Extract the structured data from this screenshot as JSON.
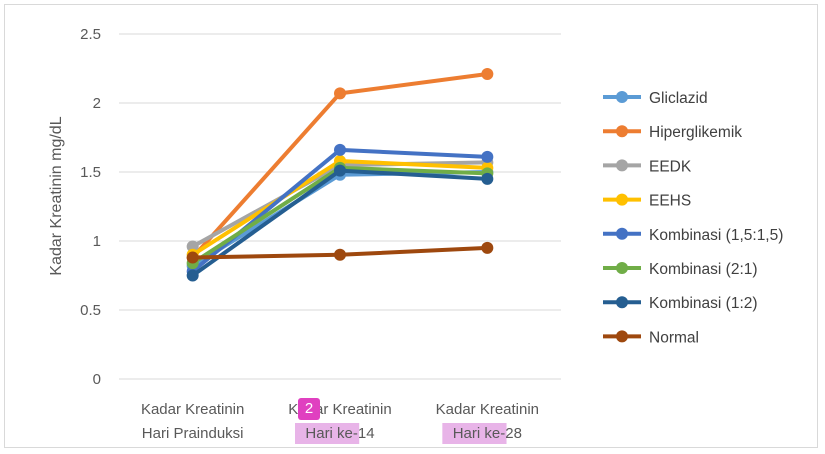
{
  "chart_data": {
    "type": "line",
    "title": "",
    "xlabel": "",
    "ylabel": "Kadar Kreatinin mg/dL",
    "ylim": [
      0,
      2.5
    ],
    "yticks": [
      "0",
      "0.5",
      "1",
      "1.5",
      "2",
      "2.5"
    ],
    "grid": true,
    "legend_position": "right",
    "categories": [
      [
        "Kadar Kreatinin",
        "Hari Prainduksi"
      ],
      [
        "Kadar Kreatinin",
        "Hari ke-14"
      ],
      [
        "Kadar Kreatinin",
        "Hari ke-28"
      ]
    ],
    "series": [
      {
        "name": "Gliclazid",
        "color": "#5b9bd5",
        "values": [
          0.82,
          1.48,
          1.5
        ]
      },
      {
        "name": "Hiperglikemik",
        "color": "#ed7d31",
        "values": [
          0.88,
          2.07,
          2.21
        ]
      },
      {
        "name": "EEDK",
        "color": "#a5a5a5",
        "values": [
          0.96,
          1.55,
          1.57
        ]
      },
      {
        "name": "EEHS",
        "color": "#ffc000",
        "values": [
          0.9,
          1.58,
          1.53
        ]
      },
      {
        "name": "Kombinasi (1,5:1,5)",
        "color": "#4472c4",
        "values": [
          0.78,
          1.66,
          1.61
        ]
      },
      {
        "name": "Kombinasi (2:1)",
        "color": "#70ad47",
        "values": [
          0.84,
          1.53,
          1.49
        ]
      },
      {
        "name": "Kombinasi (1:2)",
        "color": "#255e91",
        "values": [
          0.75,
          1.51,
          1.45
        ]
      },
      {
        "name": "Normal",
        "color": "#9e480e",
        "values": [
          0.88,
          0.9,
          0.95
        ]
      }
    ]
  },
  "annotation_badge": "2",
  "highlight_color": "#e8b4e8"
}
